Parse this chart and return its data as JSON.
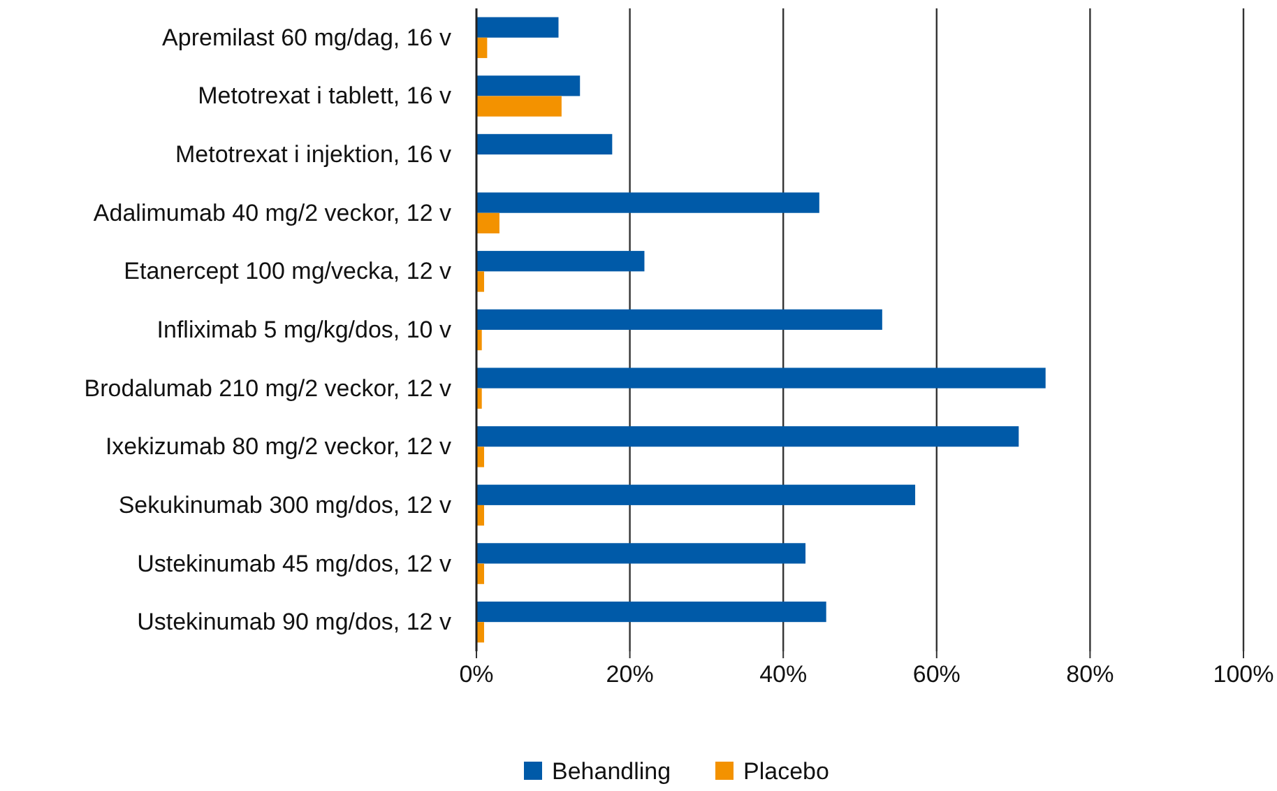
{
  "chart_data": {
    "type": "bar",
    "orientation": "horizontal",
    "categories": [
      "Apremilast 60 mg/dag, 16 v",
      "Metotrexat i tablett, 16 v",
      "Metotrexat i injektion, 16 v",
      "Adalimumab 40 mg/2 veckor, 12 v",
      "Etanercept 100 mg/vecka, 12 v",
      "Infliximab 5 mg/kg/dos, 10 v",
      "Brodalumab 210 mg/2 veckor, 12 v",
      "Ixekizumab 80 mg/2 veckor, 12 v",
      "Sekukinumab 300 mg/dos, 12 v",
      "Ustekinumab 45 mg/dos, 12 v",
      "Ustekinumab 90 mg/dos, 12 v"
    ],
    "series": [
      {
        "name": "Behandling",
        "color": "#005aa8",
        "values": [
          10.7,
          13.5,
          17.7,
          44.7,
          21.9,
          52.9,
          74.2,
          70.7,
          57.2,
          42.9,
          45.6
        ]
      },
      {
        "name": "Placebo",
        "color": "#f39200",
        "values": [
          1.4,
          11.1,
          null,
          3.0,
          1.0,
          0.7,
          0.7,
          1.0,
          1.0,
          1.0,
          1.0
        ]
      }
    ],
    "xlim": [
      0,
      100
    ],
    "xticks": [
      {
        "value": 0,
        "label": "0%"
      },
      {
        "value": 20,
        "label": "20%"
      },
      {
        "value": 40,
        "label": "40%"
      },
      {
        "value": 60,
        "label": "60%"
      },
      {
        "value": 80,
        "label": "80%"
      },
      {
        "value": 100,
        "label": "100%"
      }
    ],
    "grid": "x",
    "legend": "bottom"
  }
}
